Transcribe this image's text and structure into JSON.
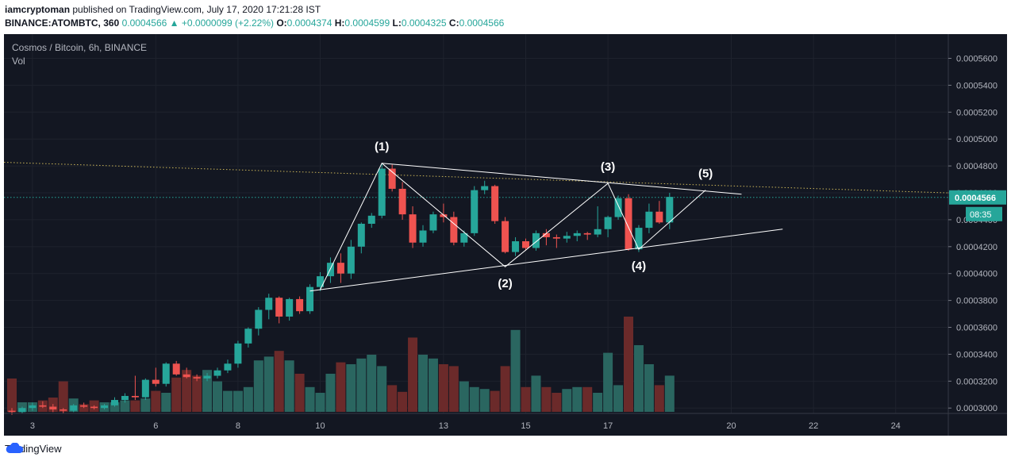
{
  "header": {
    "author": "iamcryptoman",
    "published_text": "published on TradingView.com, July 17, 2020 17:21:28 IST",
    "symbol": "BINANCE:ATOMBTC, 360",
    "last": "0.0004566",
    "change": "+0.0000099 (+2.22%)",
    "o_label": "O:",
    "o": "0.0004374",
    "h_label": "H:",
    "h": "0.0004599",
    "l_label": "L:",
    "l": "0.0004325",
    "c_label": "C:",
    "c": "0.0004566"
  },
  "legend": {
    "title": "Cosmos / Bitcoin, 6h, BINANCE",
    "vol": "Vol"
  },
  "price_label": {
    "value": "0.0004566",
    "countdown": "08:35"
  },
  "footer": {
    "brand": "TradingView"
  },
  "colors": {
    "up": "#26a69a",
    "down": "#ef5350",
    "vol_up": "#2a6660",
    "vol_down": "#6b2a2a",
    "bg": "#131722"
  },
  "chart_data": {
    "type": "candlestick",
    "title": "Cosmos / Bitcoin, 6h, BINANCE",
    "ylim": [
      0.000296,
      0.000578
    ],
    "y_ticks": [
      "0.0003000",
      "0.0003200",
      "0.0003400",
      "0.0003600",
      "0.0003800",
      "0.0004000",
      "0.0004200",
      "0.0004400",
      "0.0004600",
      "0.0004800",
      "0.0005000",
      "0.0005200",
      "0.0005400",
      "0.0005600"
    ],
    "x_ticks": [
      {
        "label": "3",
        "i": 2
      },
      {
        "label": "6",
        "i": 14
      },
      {
        "label": "8",
        "i": 22
      },
      {
        "label": "10",
        "i": 30
      },
      {
        "label": "13",
        "i": 42
      },
      {
        "label": "15",
        "i": 50
      },
      {
        "label": "17",
        "i": 58
      },
      {
        "label": "20",
        "i": 70
      },
      {
        "label": "22",
        "i": 78
      },
      {
        "label": "24",
        "i": 86
      }
    ],
    "candles": [
      [
        0.000298,
        0.0003,
        0.000295,
        0.000297
      ],
      [
        0.000297,
        0.000301,
        0.000296,
        0.0003
      ],
      [
        0.0003,
        0.000304,
        0.000298,
        0.000302
      ],
      [
        0.000302,
        0.000305,
        0.0003,
        0.000301
      ],
      [
        0.000301,
        0.000303,
        0.000297,
        0.000299
      ],
      [
        0.000299,
        0.0003,
        0.000296,
        0.000298
      ],
      [
        0.000298,
        0.000303,
        0.000297,
        0.000302
      ],
      [
        0.000302,
        0.000304,
        0.0003,
        0.000301
      ],
      [
        0.000301,
        0.000302,
        0.000299,
        0.0003
      ],
      [
        0.0003,
        0.000303,
        0.000299,
        0.000302
      ],
      [
        0.000302,
        0.000308,
        0.000301,
        0.000306
      ],
      [
        0.000306,
        0.000311,
        0.000304,
        0.000309
      ],
      [
        0.000309,
        0.000324,
        0.000306,
        0.000308
      ],
      [
        0.000308,
        0.000322,
        0.000306,
        0.000321
      ],
      [
        0.000321,
        0.00033,
        0.000316,
        0.000318
      ],
      [
        0.000318,
        0.000334,
        0.000316,
        0.000333
      ],
      [
        0.000333,
        0.000335,
        0.000324,
        0.000325
      ],
      [
        0.000325,
        0.00033,
        0.000322,
        0.000323
      ],
      [
        0.000323,
        0.000325,
        0.00032,
        0.000322
      ],
      [
        0.000322,
        0.000326,
        0.00032,
        0.000324
      ],
      [
        0.000324,
        0.00033,
        0.000322,
        0.000328
      ],
      [
        0.000328,
        0.000336,
        0.000326,
        0.000333
      ],
      [
        0.000333,
        0.00035,
        0.00033,
        0.000348
      ],
      [
        0.000348,
        0.00036,
        0.000345,
        0.000359
      ],
      [
        0.000359,
        0.000375,
        0.000354,
        0.000373
      ],
      [
        0.000373,
        0.000385,
        0.000366,
        0.000382
      ],
      [
        0.000382,
        0.000383,
        0.000363,
        0.000368
      ],
      [
        0.000368,
        0.000382,
        0.000365,
        0.000381
      ],
      [
        0.000381,
        0.000383,
        0.00037,
        0.000372
      ],
      [
        0.000372,
        0.000392,
        0.00037,
        0.00039
      ],
      [
        0.00039,
        0.000401,
        0.000387,
        0.000398
      ],
      [
        0.000398,
        0.000412,
        0.000393,
        0.000408
      ],
      [
        0.000408,
        0.000415,
        0.000393,
        0.0004
      ],
      [
        0.0004,
        0.000425,
        0.000396,
        0.00042
      ],
      [
        0.00042,
        0.000438,
        0.000415,
        0.000437
      ],
      [
        0.000437,
        0.000445,
        0.000434,
        0.000443
      ],
      [
        0.000443,
        0.000482,
        0.000441,
        0.000478
      ],
      [
        0.000478,
        0.000481,
        0.000461,
        0.000463
      ],
      [
        0.000463,
        0.000468,
        0.00044,
        0.000444
      ],
      [
        0.000444,
        0.00045,
        0.000419,
        0.000423
      ],
      [
        0.000423,
        0.000436,
        0.00042,
        0.000432
      ],
      [
        0.000432,
        0.000446,
        0.00043,
        0.000444
      ],
      [
        0.000444,
        0.000452,
        0.000438,
        0.000442
      ],
      [
        0.000442,
        0.000446,
        0.000421,
        0.000423
      ],
      [
        0.000423,
        0.000432,
        0.00042,
        0.00043
      ],
      [
        0.00043,
        0.000465,
        0.000428,
        0.000462
      ],
      [
        0.000462,
        0.000469,
        0.000459,
        0.000465
      ],
      [
        0.000465,
        0.000466,
        0.000437,
        0.000439
      ],
      [
        0.000439,
        0.000442,
        0.000415,
        0.000416
      ],
      [
        0.000416,
        0.000427,
        0.000413,
        0.000424
      ],
      [
        0.000424,
        0.000426,
        0.000417,
        0.000419
      ],
      [
        0.000419,
        0.000432,
        0.000417,
        0.00043
      ],
      [
        0.00043,
        0.000433,
        0.000421,
        0.000427
      ],
      [
        0.000427,
        0.000429,
        0.000419,
        0.000426
      ],
      [
        0.000426,
        0.000431,
        0.000423,
        0.000428
      ],
      [
        0.000428,
        0.000432,
        0.000424,
        0.00043
      ],
      [
        0.00043,
        0.000431,
        0.000425,
        0.000429
      ],
      [
        0.000429,
        0.00045,
        0.000427,
        0.000433
      ],
      [
        0.000433,
        0.000443,
        0.000427,
        0.000442
      ],
      [
        0.000442,
        0.000458,
        0.00044,
        0.000456
      ],
      [
        0.000456,
        0.000459,
        0.000417,
        0.000418
      ],
      [
        0.000418,
        0.000436,
        0.000416,
        0.000434
      ],
      [
        0.000434,
        0.000452,
        0.00043,
        0.000446
      ],
      [
        0.000446,
        0.000454,
        0.000437,
        0.000438
      ],
      [
        0.000438,
        0.00046,
        0.000433,
        0.000457
      ]
    ],
    "volume": [
      0.35,
      0.1,
      0.1,
      0.12,
      0.15,
      0.32,
      0.14,
      0.08,
      0.12,
      0.1,
      0.1,
      0.12,
      0.12,
      0.14,
      0.22,
      0.2,
      0.36,
      0.44,
      0.38,
      0.44,
      0.32,
      0.22,
      0.22,
      0.26,
      0.54,
      0.58,
      0.64,
      0.54,
      0.4,
      0.26,
      0.2,
      0.4,
      0.52,
      0.5,
      0.56,
      0.6,
      0.48,
      0.28,
      0.21,
      0.78,
      0.6,
      0.56,
      0.5,
      0.48,
      0.32,
      0.26,
      0.24,
      0.22,
      0.48,
      0.86,
      0.26,
      0.38,
      0.26,
      0.2,
      0.24,
      0.26,
      0.26,
      0.2,
      0.62,
      0.28,
      1.0,
      0.7,
      0.5,
      0.28,
      0.38
    ],
    "annotations": [
      {
        "label": "(1)",
        "i": 36,
        "price": 0.000482,
        "pos": "above"
      },
      {
        "label": "(2)",
        "i": 48,
        "price": 0.000405,
        "pos": "below"
      },
      {
        "label": "(3)",
        "i": 58,
        "price": 0.000467,
        "pos": "above"
      },
      {
        "label": "(4)",
        "i": 61,
        "price": 0.000418,
        "pos": "below"
      },
      {
        "label": "(5)",
        "i": 67.5,
        "price": 0.000462,
        "pos": "above"
      }
    ],
    "wave_path": [
      [
        30,
        0.000388
      ],
      [
        36,
        0.000482
      ],
      [
        48,
        0.000405
      ],
      [
        58,
        0.000467
      ],
      [
        61,
        0.000418
      ],
      [
        67.5,
        0.000462
      ]
    ],
    "upper_trendline": [
      [
        36,
        0.000482
      ],
      [
        71,
        0.000459
      ]
    ],
    "lower_trendline": [
      [
        29,
        0.000387
      ],
      [
        75,
        0.000433
      ]
    ],
    "resistance_dotted": [
      [
        -2,
        0.000483
      ],
      [
        95,
        0.000459
      ]
    ],
    "current_price": 0.0004566
  }
}
